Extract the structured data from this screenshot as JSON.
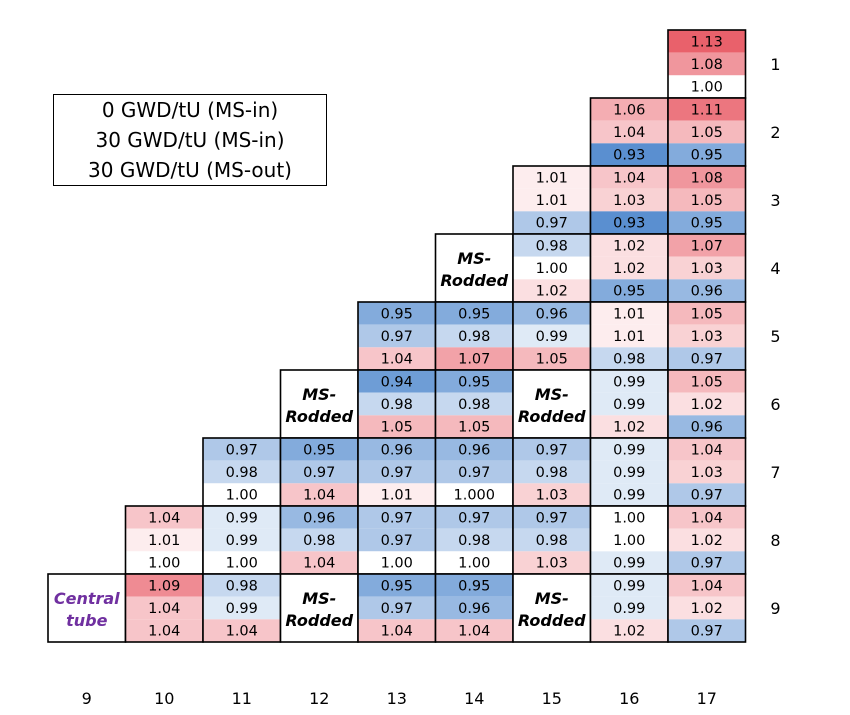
{
  "legend": {
    "lines": [
      "0 GWD/tU (MS-in)",
      "30 GWD/tU (MS-in)",
      "30 GWD/tU (MS-out)"
    ]
  },
  "chart_data": {
    "type": "heatmap",
    "title": "",
    "colors": {
      "high": "#e9616b",
      "neutral": "#ffffff",
      "low": "#5a8fd0",
      "central_tube_text": "#7030a0"
    },
    "color_scale": {
      "min": 0.93,
      "center": 1.0,
      "max": 1.13
    },
    "columns": [
      "9",
      "10",
      "11",
      "12",
      "13",
      "14",
      "15",
      "16",
      "17"
    ],
    "rows": [
      "1",
      "2",
      "3",
      "4",
      "5",
      "6",
      "7",
      "8",
      "9"
    ],
    "special_labels": {
      "ms_rodded": [
        "MS-",
        "Rodded"
      ],
      "central_tube": [
        "Central",
        "tube"
      ]
    },
    "cells": [
      {
        "col": "17",
        "row": "1",
        "values": [
          "1.13",
          "1.08",
          "1.00"
        ]
      },
      {
        "col": "16",
        "row": "2",
        "values": [
          "1.06",
          "1.04",
          "0.93"
        ]
      },
      {
        "col": "17",
        "row": "2",
        "values": [
          "1.11",
          "1.05",
          "0.95"
        ]
      },
      {
        "col": "15",
        "row": "3",
        "values": [
          "1.01",
          "1.01",
          "0.97"
        ]
      },
      {
        "col": "16",
        "row": "3",
        "values": [
          "1.04",
          "1.03",
          "0.93"
        ]
      },
      {
        "col": "17",
        "row": "3",
        "values": [
          "1.08",
          "1.05",
          "0.95"
        ]
      },
      {
        "col": "14",
        "row": "4",
        "special": "ms_rodded"
      },
      {
        "col": "15",
        "row": "4",
        "values": [
          "0.98",
          "1.00",
          "1.02"
        ]
      },
      {
        "col": "16",
        "row": "4",
        "values": [
          "1.02",
          "1.02",
          "0.95"
        ]
      },
      {
        "col": "17",
        "row": "4",
        "values": [
          "1.07",
          "1.03",
          "0.96"
        ]
      },
      {
        "col": "13",
        "row": "5",
        "values": [
          "0.95",
          "0.97",
          "1.04"
        ]
      },
      {
        "col": "14",
        "row": "5",
        "values": [
          "0.95",
          "0.98",
          "1.07"
        ]
      },
      {
        "col": "15",
        "row": "5",
        "values": [
          "0.96",
          "0.99",
          "1.05"
        ]
      },
      {
        "col": "16",
        "row": "5",
        "values": [
          "1.01",
          "1.01",
          "0.98"
        ]
      },
      {
        "col": "17",
        "row": "5",
        "values": [
          "1.05",
          "1.03",
          "0.97"
        ]
      },
      {
        "col": "12",
        "row": "6",
        "special": "ms_rodded"
      },
      {
        "col": "13",
        "row": "6",
        "values": [
          "0.94",
          "0.98",
          "1.05"
        ]
      },
      {
        "col": "14",
        "row": "6",
        "values": [
          "0.95",
          "0.98",
          "1.05"
        ]
      },
      {
        "col": "15",
        "row": "6",
        "special": "ms_rodded"
      },
      {
        "col": "16",
        "row": "6",
        "values": [
          "0.99",
          "0.99",
          "1.02"
        ]
      },
      {
        "col": "17",
        "row": "6",
        "values": [
          "1.05",
          "1.02",
          "0.96"
        ]
      },
      {
        "col": "11",
        "row": "7",
        "values": [
          "0.97",
          "0.98",
          "1.00"
        ]
      },
      {
        "col": "12",
        "row": "7",
        "values": [
          "0.95",
          "0.97",
          "1.04"
        ]
      },
      {
        "col": "13",
        "row": "7",
        "values": [
          "0.96",
          "0.97",
          "1.01"
        ]
      },
      {
        "col": "14",
        "row": "7",
        "values": [
          "0.96",
          "0.97",
          "1.000"
        ]
      },
      {
        "col": "15",
        "row": "7",
        "values": [
          "0.97",
          "0.98",
          "1.03"
        ]
      },
      {
        "col": "16",
        "row": "7",
        "values": [
          "0.99",
          "0.99",
          "0.99"
        ]
      },
      {
        "col": "17",
        "row": "7",
        "values": [
          "1.04",
          "1.03",
          "0.97"
        ]
      },
      {
        "col": "10",
        "row": "8",
        "values": [
          "1.04",
          "1.01",
          "1.00"
        ]
      },
      {
        "col": "11",
        "row": "8",
        "values": [
          "0.99",
          "0.99",
          "1.00"
        ]
      },
      {
        "col": "12",
        "row": "8",
        "values": [
          "0.96",
          "0.98",
          "1.04"
        ]
      },
      {
        "col": "13",
        "row": "8",
        "values": [
          "0.97",
          "0.97",
          "1.00"
        ]
      },
      {
        "col": "14",
        "row": "8",
        "values": [
          "0.97",
          "0.98",
          "1.00"
        ]
      },
      {
        "col": "15",
        "row": "8",
        "values": [
          "0.97",
          "0.98",
          "1.03"
        ]
      },
      {
        "col": "16",
        "row": "8",
        "values": [
          "1.00",
          "1.00",
          "0.99"
        ]
      },
      {
        "col": "17",
        "row": "8",
        "values": [
          "1.04",
          "1.02",
          "0.97"
        ]
      },
      {
        "col": "9",
        "row": "9",
        "special": "central_tube"
      },
      {
        "col": "10",
        "row": "9",
        "values": [
          "1.09",
          "1.04",
          "1.04"
        ]
      },
      {
        "col": "11",
        "row": "9",
        "values": [
          "0.98",
          "0.99",
          "1.04"
        ]
      },
      {
        "col": "12",
        "row": "9",
        "special": "ms_rodded"
      },
      {
        "col": "13",
        "row": "9",
        "values": [
          "0.95",
          "0.97",
          "1.04"
        ]
      },
      {
        "col": "14",
        "row": "9",
        "values": [
          "0.95",
          "0.96",
          "1.04"
        ]
      },
      {
        "col": "15",
        "row": "9",
        "special": "ms_rodded"
      },
      {
        "col": "16",
        "row": "9",
        "values": [
          "0.99",
          "0.99",
          "1.02"
        ]
      },
      {
        "col": "17",
        "row": "9",
        "values": [
          "1.04",
          "1.02",
          "0.97"
        ]
      }
    ]
  }
}
